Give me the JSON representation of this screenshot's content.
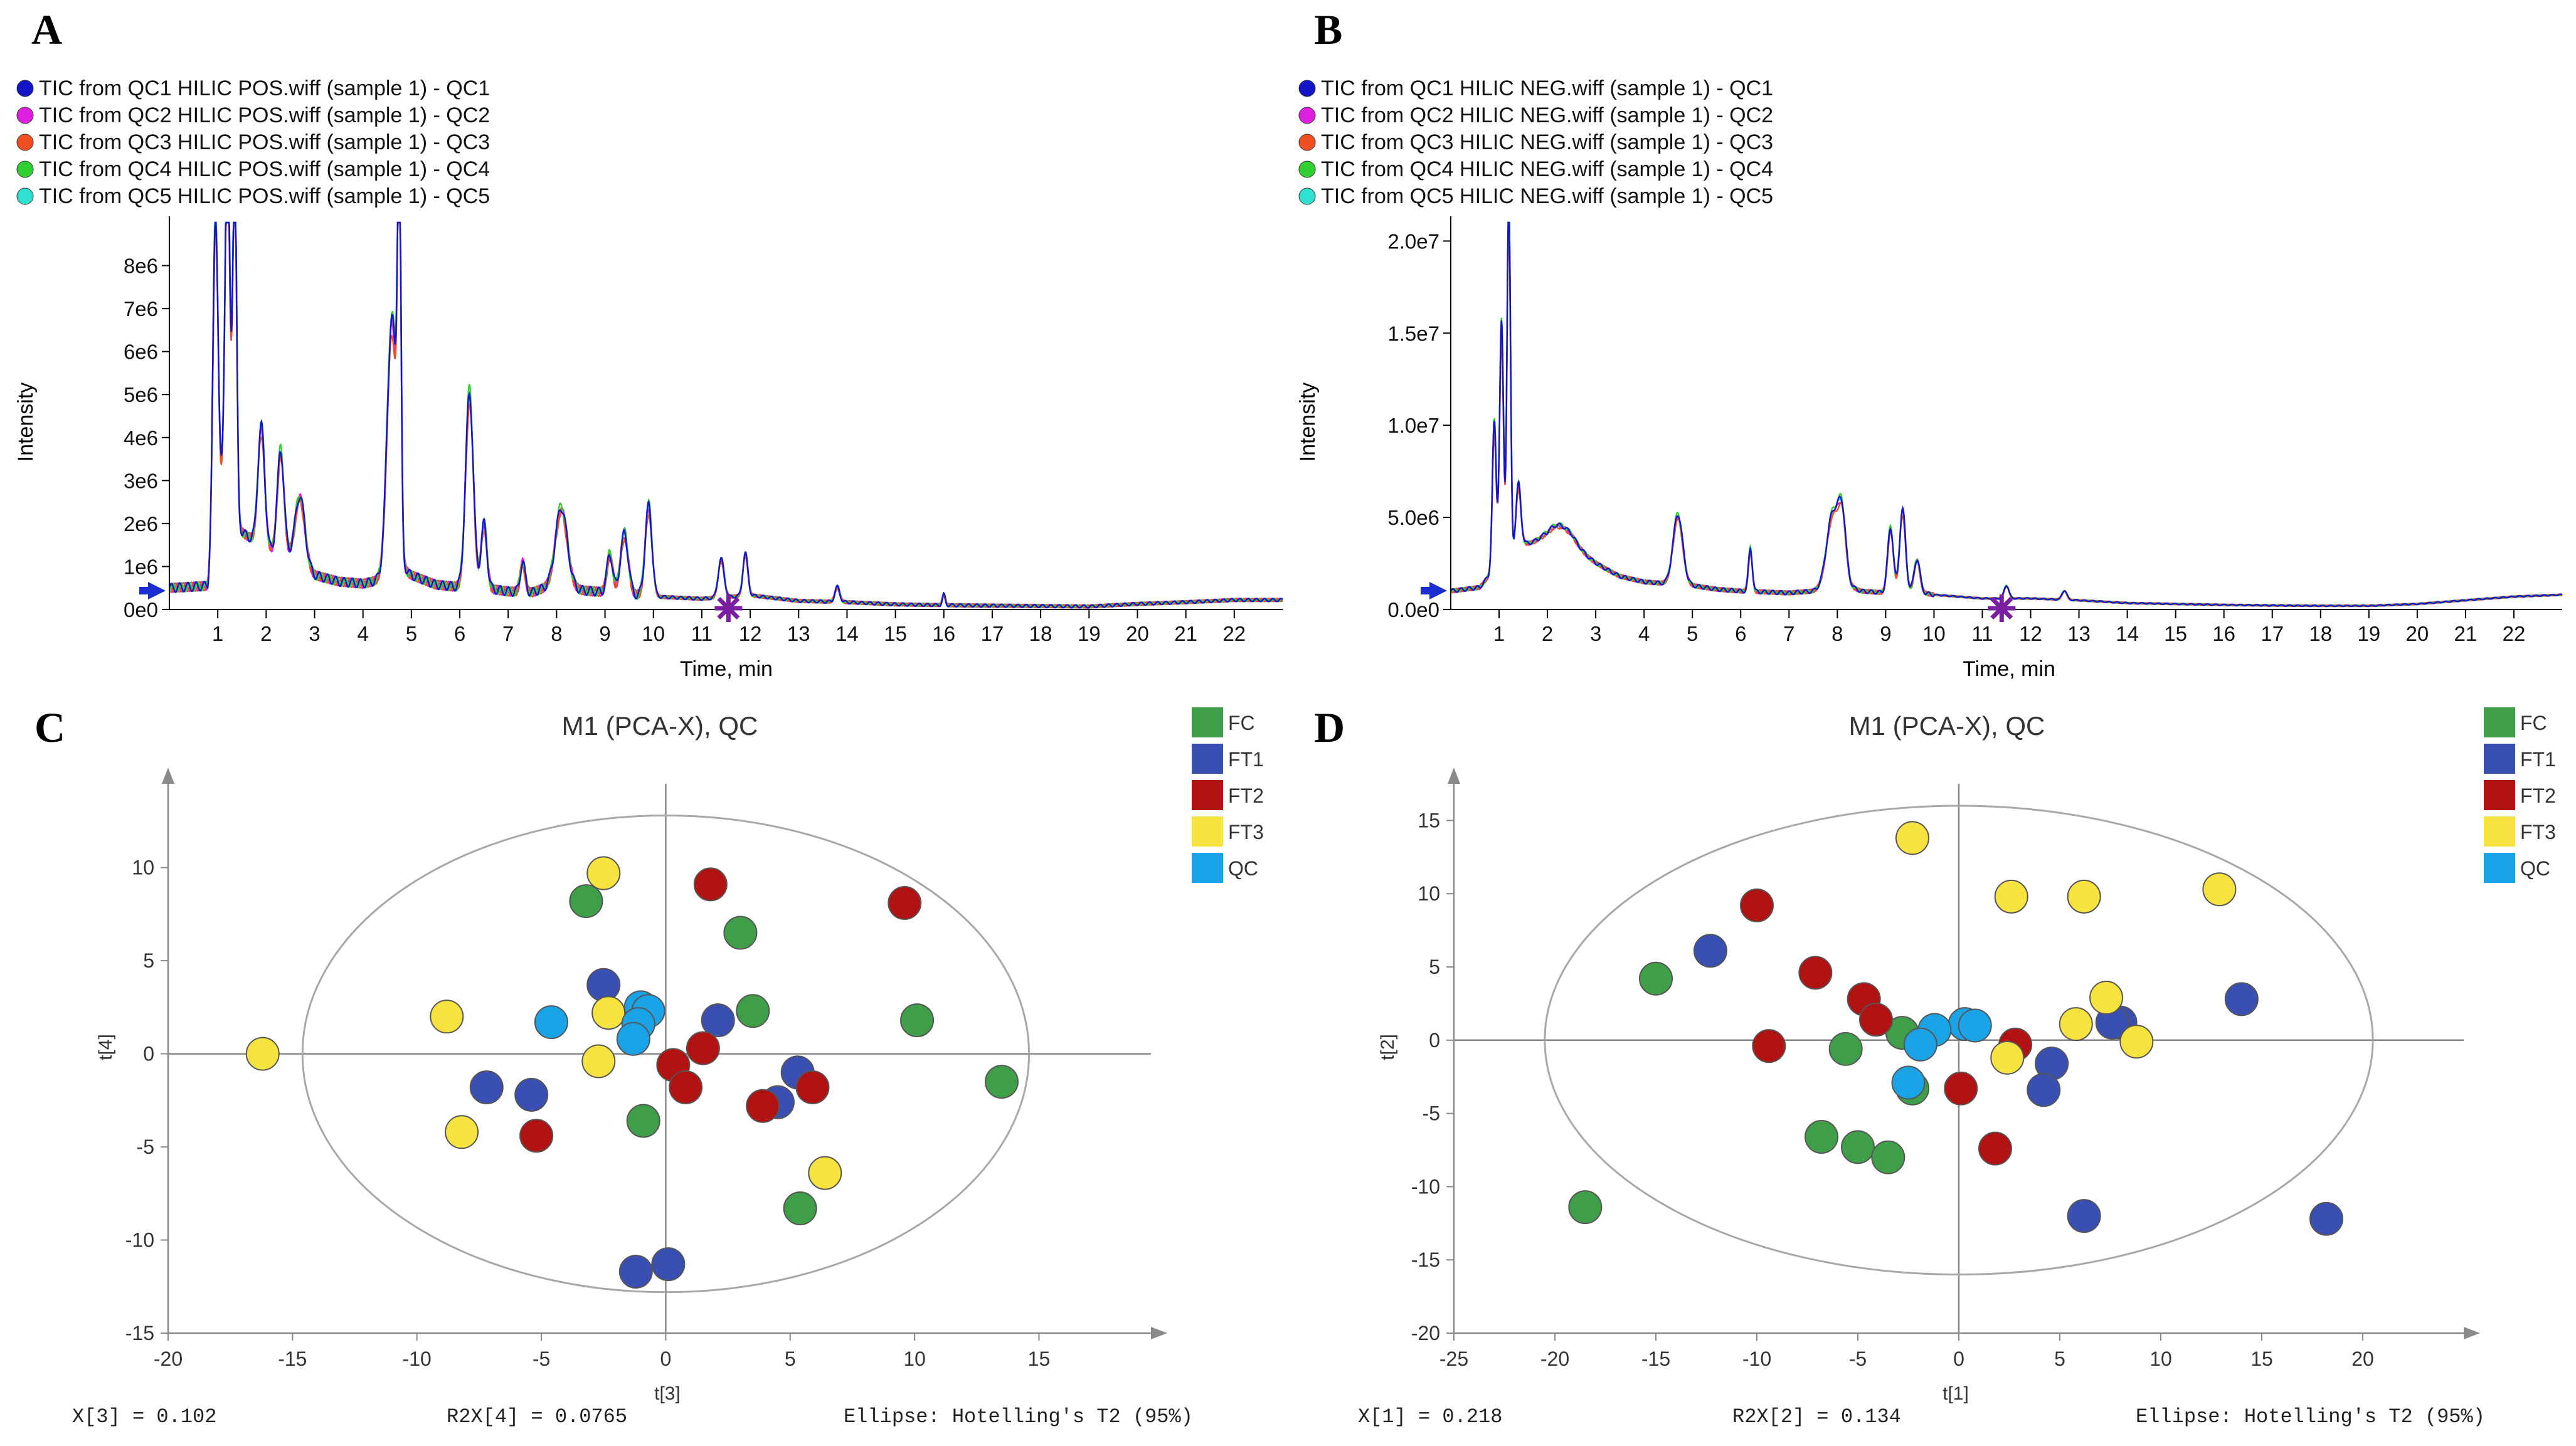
{
  "colors": {
    "qc1": "#1414c8",
    "qc2": "#e020e0",
    "qc3": "#f05020",
    "qc4": "#30d030",
    "qc5": "#30e0d0",
    "fc": "#3f9f48",
    "ft1": "#3a4fb2",
    "ft2": "#b11212",
    "ft3": "#f7e340",
    "qc": "#1aa3e6"
  },
  "chart_data": [
    {
      "panel": "A",
      "type": "line",
      "legend": [
        "TIC from QC1 HILIC POS.wiff (sample 1) - QC1",
        "TIC from QC2 HILIC POS.wiff (sample 1) - QC2",
        "TIC from QC3 HILIC POS.wiff (sample 1) - QC3",
        "TIC from QC4 HILIC POS.wiff (sample 1) - QC4",
        "TIC from QC5 HILIC POS.wiff (sample 1) - QC5"
      ],
      "xlabel": "Time, min",
      "ylabel": "Intensity",
      "xlim": [
        0,
        23
      ],
      "ylim": [
        0,
        9000000
      ],
      "xticks": [
        1,
        2,
        3,
        4,
        5,
        6,
        7,
        8,
        9,
        10,
        11,
        12,
        13,
        14,
        15,
        16,
        17,
        18,
        19,
        20,
        21,
        22
      ],
      "yticks": [
        0,
        1000000,
        2000000,
        3000000,
        4000000,
        5000000,
        6000000,
        7000000,
        8000000
      ],
      "ytick_labels": [
        "0e0",
        "1e6",
        "2e6",
        "3e6",
        "4e6",
        "5e6",
        "6e6",
        "7e6",
        "8e6"
      ],
      "marker_x": 11.55,
      "base": [
        [
          0,
          500000
        ],
        [
          0.8,
          550000
        ],
        [
          1,
          3000000
        ],
        [
          1.2,
          2500000
        ],
        [
          1.5,
          1800000
        ],
        [
          2,
          1400000
        ],
        [
          2.5,
          1200000
        ],
        [
          3,
          800000
        ],
        [
          3.5,
          650000
        ],
        [
          4,
          600000
        ],
        [
          4.4,
          700000
        ],
        [
          4.8,
          900000
        ],
        [
          5,
          800000
        ],
        [
          5.5,
          580000
        ],
        [
          6,
          520000
        ],
        [
          6.5,
          500000
        ],
        [
          7,
          420000
        ],
        [
          7.5,
          400000
        ],
        [
          8,
          600000
        ],
        [
          8.5,
          450000
        ],
        [
          9,
          400000
        ],
        [
          9.5,
          350000
        ],
        [
          10,
          300000
        ],
        [
          11,
          250000
        ],
        [
          12,
          330000
        ],
        [
          13,
          200000
        ],
        [
          14,
          170000
        ],
        [
          15,
          120000
        ],
        [
          16,
          100000
        ],
        [
          17,
          90000
        ],
        [
          18,
          80000
        ],
        [
          19,
          70000
        ],
        [
          20,
          130000
        ],
        [
          21,
          170000
        ],
        [
          22,
          220000
        ],
        [
          23,
          220000
        ]
      ],
      "peaks": [
        [
          0.95,
          6800000,
          0.05
        ],
        [
          1.2,
          8500000,
          0.05
        ],
        [
          1.35,
          8300000,
          0.04
        ],
        [
          1.9,
          2800000,
          0.07
        ],
        [
          2.3,
          2400000,
          0.07
        ],
        [
          2.7,
          1600000,
          0.1
        ],
        [
          4.6,
          6000000,
          0.1
        ],
        [
          4.75,
          8600000,
          0.035
        ],
        [
          6.2,
          4500000,
          0.08
        ],
        [
          6.5,
          1500000,
          0.06
        ],
        [
          7.3,
          700000,
          0.05
        ],
        [
          8.1,
          1800000,
          0.12
        ],
        [
          9.1,
          900000,
          0.06
        ],
        [
          9.4,
          1400000,
          0.08
        ],
        [
          9.9,
          2100000,
          0.07
        ],
        [
          11.4,
          900000,
          0.06
        ],
        [
          11.9,
          1000000,
          0.05
        ],
        [
          13.8,
          350000,
          0.05
        ],
        [
          16,
          250000,
          0.03
        ]
      ],
      "series_scale": [
        1.0,
        0.97,
        0.94,
        1.03,
        0.99
      ]
    },
    {
      "panel": "B",
      "type": "line",
      "legend": [
        "TIC from QC1 HILIC NEG.wiff (sample 1) - QC1",
        "TIC from QC2 HILIC NEG.wiff (sample 1) - QC2",
        "TIC from QC3 HILIC NEG.wiff (sample 1) - QC3",
        "TIC from QC4 HILIC NEG.wiff (sample 1) - QC4",
        "TIC from QC5 HILIC NEG.wiff (sample 1) - QC5"
      ],
      "xlabel": "Time, min",
      "ylabel": "Intensity",
      "xlim": [
        0,
        23
      ],
      "ylim": [
        0,
        21000000
      ],
      "xticks": [
        1,
        2,
        3,
        4,
        5,
        6,
        7,
        8,
        9,
        10,
        11,
        12,
        13,
        14,
        15,
        16,
        17,
        18,
        19,
        20,
        21,
        22
      ],
      "yticks": [
        0,
        5000000,
        10000000,
        15000000,
        20000000
      ],
      "ytick_labels": [
        "0.0e0",
        "5.0e6",
        "1.0e7",
        "1.5e7",
        "2.0e7"
      ],
      "marker_x": 11.4,
      "base": [
        [
          0,
          1000000
        ],
        [
          0.6,
          1200000
        ],
        [
          1,
          2500000
        ],
        [
          1.5,
          3500000
        ],
        [
          2,
          3000000
        ],
        [
          2.5,
          3200000
        ],
        [
          3,
          2500000
        ],
        [
          3.5,
          1800000
        ],
        [
          4,
          1500000
        ],
        [
          4.5,
          1400000
        ],
        [
          5,
          1300000
        ],
        [
          5.5,
          1100000
        ],
        [
          6,
          1000000
        ],
        [
          7,
          900000
        ],
        [
          7.5,
          1000000
        ],
        [
          8,
          1500000
        ],
        [
          8.5,
          1000000
        ],
        [
          9,
          900000
        ],
        [
          9.5,
          1000000
        ],
        [
          10,
          800000
        ],
        [
          11,
          600000
        ],
        [
          12,
          600000
        ],
        [
          13,
          500000
        ],
        [
          14,
          350000
        ],
        [
          15,
          300000
        ],
        [
          16,
          250000
        ],
        [
          17,
          220000
        ],
        [
          18,
          200000
        ],
        [
          19,
          200000
        ],
        [
          20,
          300000
        ],
        [
          21,
          500000
        ],
        [
          22,
          700000
        ],
        [
          23,
          800000
        ]
      ],
      "peaks": [
        [
          0.9,
          8000000,
          0.04
        ],
        [
          1.05,
          13000000,
          0.04
        ],
        [
          1.2,
          20000000,
          0.035
        ],
        [
          1.4,
          3500000,
          0.05
        ],
        [
          2.2,
          1500000,
          0.3
        ],
        [
          4.7,
          3800000,
          0.1
        ],
        [
          6.2,
          2300000,
          0.04
        ],
        [
          7.9,
          3800000,
          0.12
        ],
        [
          8.1,
          3500000,
          0.08
        ],
        [
          9.1,
          3500000,
          0.06
        ],
        [
          9.35,
          4500000,
          0.06
        ],
        [
          9.65,
          1800000,
          0.06
        ],
        [
          11.5,
          700000,
          0.05
        ],
        [
          12.7,
          500000,
          0.05
        ]
      ],
      "series_scale": [
        1.0,
        0.96,
        0.93,
        1.02,
        0.98
      ]
    },
    {
      "panel": "C",
      "type": "scatter",
      "title": "M1 (PCA-X), QC",
      "xlabel": "t[3]",
      "ylabel": "t[4]",
      "xlim": [
        -20,
        19.5
      ],
      "ylim": [
        -15,
        14.5
      ],
      "xticks": [
        -20,
        -15,
        -10,
        -5,
        0,
        5,
        10,
        15
      ],
      "yticks": [
        -15,
        -10,
        -5,
        0,
        5,
        10
      ],
      "ellipse": {
        "rx": 14.6,
        "ry": 12.8
      },
      "footer": [
        "X[3] = 0.102",
        "R2X[4] = 0.0765",
        "Ellipse: Hotelling's T2 (95%)"
      ],
      "legend": [
        "FC",
        "FT1",
        "FT2",
        "FT3",
        "QC"
      ],
      "series": [
        {
          "name": "FC",
          "points": [
            [
              -3.2,
              8.2
            ],
            [
              3.0,
              6.5
            ],
            [
              3.5,
              2.3
            ],
            [
              10.1,
              1.8
            ],
            [
              13.5,
              -1.5
            ],
            [
              -0.9,
              -3.6
            ],
            [
              5.4,
              -8.3
            ]
          ]
        },
        {
          "name": "FT1",
          "points": [
            [
              -2.5,
              3.7
            ],
            [
              2.1,
              1.8
            ],
            [
              5.3,
              -1.0
            ],
            [
              4.5,
              -2.6
            ],
            [
              -7.2,
              -1.8
            ],
            [
              -5.4,
              -2.2
            ],
            [
              0.1,
              -11.3
            ],
            [
              -1.2,
              -11.7
            ]
          ]
        },
        {
          "name": "FT2",
          "points": [
            [
              1.8,
              9.1
            ],
            [
              9.6,
              8.1
            ],
            [
              1.5,
              0.3
            ],
            [
              0.3,
              -0.6
            ],
            [
              0.8,
              -1.8
            ],
            [
              3.9,
              -2.8
            ],
            [
              5.9,
              -1.8
            ],
            [
              -5.2,
              -4.4
            ]
          ]
        },
        {
          "name": "FT3",
          "points": [
            [
              -2.5,
              9.7
            ],
            [
              -16.2,
              0.0
            ],
            [
              -8.8,
              2.0
            ],
            [
              -2.3,
              2.2
            ],
            [
              -2.7,
              -0.4
            ],
            [
              -8.2,
              -4.2
            ],
            [
              6.4,
              -6.4
            ]
          ]
        },
        {
          "name": "QC",
          "points": [
            [
              -4.6,
              1.7
            ],
            [
              -1.0,
              2.5
            ],
            [
              -0.7,
              2.3
            ],
            [
              -1.1,
              1.6
            ],
            [
              -1.3,
              0.8
            ]
          ]
        }
      ]
    },
    {
      "panel": "D",
      "type": "scatter",
      "title": "M1 (PCA-X), QC",
      "xlabel": "t[1]",
      "ylabel": "t[2]",
      "xlim": [
        -25,
        25
      ],
      "ylim": [
        -20,
        17.5
      ],
      "xticks": [
        -25,
        -20,
        -15,
        -10,
        -5,
        0,
        5,
        10,
        15,
        20
      ],
      "yticks": [
        -20,
        -15,
        -10,
        -5,
        0,
        5,
        10,
        15
      ],
      "ellipse": {
        "rx": 20.5,
        "ry": 16.0
      },
      "footer": [
        "X[1] = 0.218",
        "R2X[2] = 0.134",
        "Ellipse: Hotelling's T2 (95%)"
      ],
      "legend": [
        "FC",
        "FT1",
        "FT2",
        "FT3",
        "QC"
      ],
      "series": [
        {
          "name": "FC",
          "points": [
            [
              -15.0,
              4.2
            ],
            [
              -2.8,
              0.5
            ],
            [
              -5.6,
              -0.6
            ],
            [
              -2.3,
              -3.3
            ],
            [
              -6.8,
              -6.6
            ],
            [
              -5.0,
              -7.3
            ],
            [
              -3.5,
              -8.0
            ],
            [
              -18.5,
              -11.4
            ]
          ]
        },
        {
          "name": "FT1",
          "points": [
            [
              -12.3,
              6.1
            ],
            [
              14.0,
              2.8
            ],
            [
              8.0,
              1.2
            ],
            [
              7.6,
              1.2
            ],
            [
              4.6,
              -1.6
            ],
            [
              4.2,
              -3.4
            ],
            [
              6.2,
              -12.0
            ],
            [
              18.2,
              -12.2
            ]
          ]
        },
        {
          "name": "FT2",
          "points": [
            [
              -10.0,
              9.2
            ],
            [
              -7.1,
              4.6
            ],
            [
              -4.7,
              2.8
            ],
            [
              -4.1,
              1.4
            ],
            [
              -9.4,
              -0.4
            ],
            [
              2.8,
              -0.3
            ],
            [
              0.1,
              -3.3
            ],
            [
              1.8,
              -7.4
            ]
          ]
        },
        {
          "name": "FT3",
          "points": [
            [
              -2.3,
              13.8
            ],
            [
              2.6,
              9.8
            ],
            [
              6.2,
              9.8
            ],
            [
              12.9,
              10.3
            ],
            [
              7.3,
              2.9
            ],
            [
              5.8,
              1.1
            ],
            [
              8.8,
              -0.1
            ],
            [
              2.4,
              -1.2
            ]
          ]
        },
        {
          "name": "QC",
          "points": [
            [
              0.3,
              1.1
            ],
            [
              0.8,
              1.0
            ],
            [
              -1.2,
              0.7
            ],
            [
              -1.9,
              -0.3
            ],
            [
              -2.5,
              -2.9
            ]
          ]
        }
      ]
    }
  ]
}
